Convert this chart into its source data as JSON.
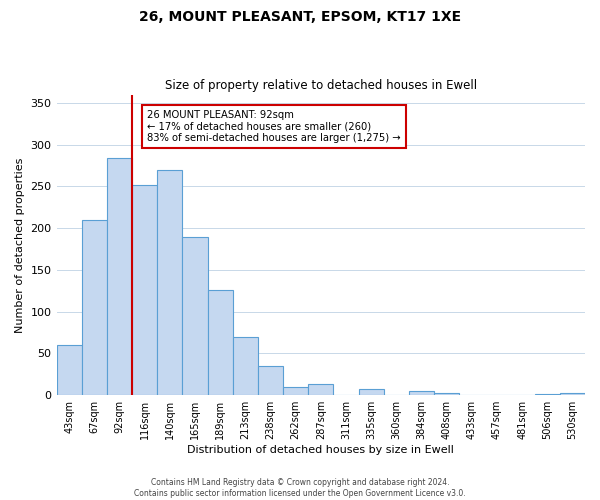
{
  "title_line1": "26, MOUNT PLEASANT, EPSOM, KT17 1XE",
  "title_line2": "Size of property relative to detached houses in Ewell",
  "xlabel": "Distribution of detached houses by size in Ewell",
  "ylabel": "Number of detached properties",
  "bar_labels": [
    "43sqm",
    "67sqm",
    "92sqm",
    "116sqm",
    "140sqm",
    "165sqm",
    "189sqm",
    "213sqm",
    "238sqm",
    "262sqm",
    "287sqm",
    "311sqm",
    "335sqm",
    "360sqm",
    "384sqm",
    "408sqm",
    "433sqm",
    "457sqm",
    "481sqm",
    "506sqm",
    "530sqm"
  ],
  "bar_values": [
    60,
    210,
    284,
    252,
    270,
    190,
    126,
    70,
    35,
    10,
    14,
    0,
    7,
    0,
    5,
    3,
    0,
    0,
    0,
    2,
    3
  ],
  "bar_color": "#c5d8f0",
  "bar_edge_color": "#5a9fd4",
  "vline_x": 2,
  "vline_color": "#cc0000",
  "annotation_title": "26 MOUNT PLEASANT: 92sqm",
  "annotation_line1": "← 17% of detached houses are smaller (260)",
  "annotation_line2": "83% of semi-detached houses are larger (1,275) →",
  "annotation_box_color": "#ffffff",
  "annotation_box_edge": "#cc0000",
  "ylim": [
    0,
    360
  ],
  "yticks": [
    0,
    50,
    100,
    150,
    200,
    250,
    300,
    350
  ],
  "footer_line1": "Contains HM Land Registry data © Crown copyright and database right 2024.",
  "footer_line2": "Contains public sector information licensed under the Open Government Licence v3.0.",
  "bg_color": "#ffffff",
  "grid_color": "#c8d8e8"
}
